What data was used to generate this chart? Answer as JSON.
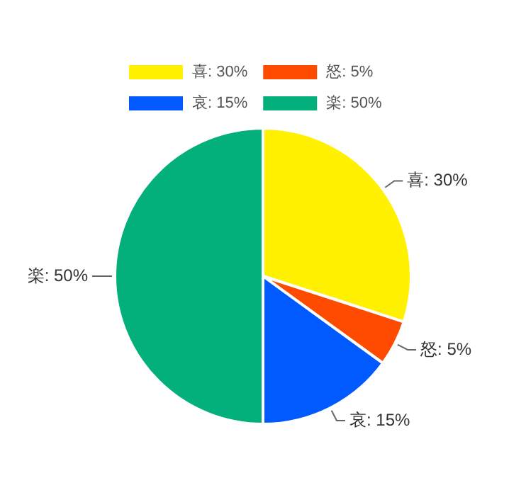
{
  "chart_data": {
    "type": "pie",
    "categories": [
      "喜: 30%",
      "怒: 5%",
      "哀: 15%",
      "楽: 50%"
    ],
    "values": [
      30,
      5,
      15,
      50
    ],
    "colors": [
      "#fff100",
      "#ff4b00",
      "#005aff",
      "#03af7a"
    ],
    "legend": "top left"
  }
}
